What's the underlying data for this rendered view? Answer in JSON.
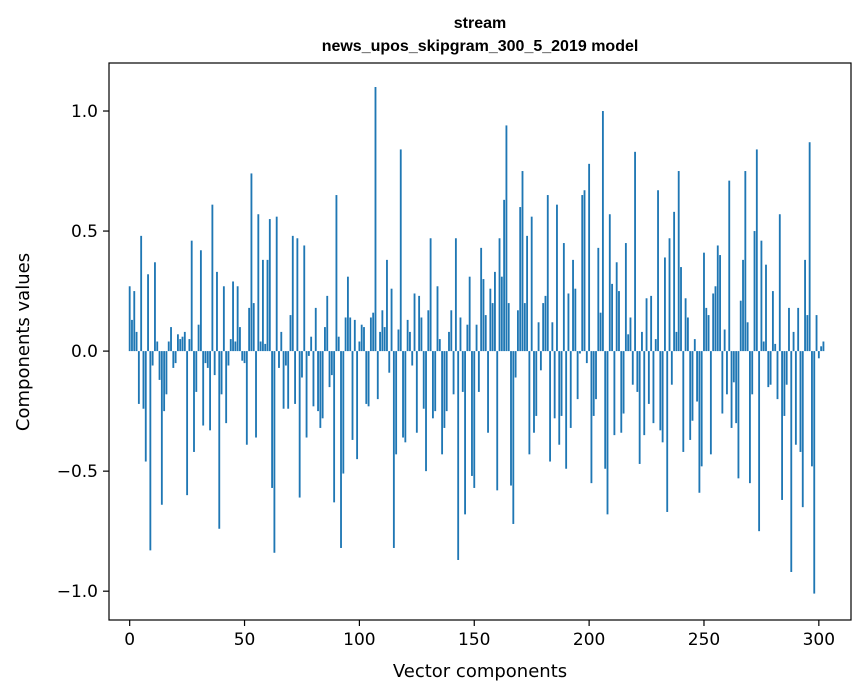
{
  "chart_data": {
    "type": "bar",
    "title": "stream",
    "subtitle": "news_upos_skipgram_300_5_2019 model",
    "xlabel": "Vector components",
    "ylabel": "Components values",
    "xlim": [
      -9,
      314
    ],
    "ylim": [
      -1.12,
      1.2
    ],
    "x_ticks": [
      0,
      50,
      100,
      150,
      200,
      250,
      300
    ],
    "x_tick_labels": [
      "0",
      "50",
      "100",
      "150",
      "200",
      "250",
      "300"
    ],
    "y_ticks": [
      -1.0,
      -0.5,
      0.0,
      0.5,
      1.0
    ],
    "y_tick_labels": [
      "−1.0",
      "−0.5",
      "0.0",
      "0.5",
      "1.0"
    ],
    "grid": false,
    "bar_color": "#1f77b4",
    "values": [
      0.27,
      0.13,
      0.25,
      0.08,
      -0.22,
      0.48,
      -0.24,
      -0.46,
      0.32,
      -0.83,
      -0.06,
      0.37,
      0.04,
      -0.12,
      -0.64,
      -0.25,
      -0.18,
      0.04,
      0.1,
      -0.07,
      -0.05,
      0.07,
      0.05,
      0.06,
      0.08,
      -0.6,
      0.05,
      0.46,
      -0.42,
      -0.17,
      0.11,
      0.42,
      -0.31,
      -0.05,
      -0.07,
      -0.33,
      0.61,
      -0.1,
      0.33,
      -0.74,
      -0.18,
      0.27,
      -0.3,
      -0.06,
      0.05,
      0.29,
      0.04,
      0.27,
      0.1,
      -0.04,
      -0.05,
      -0.39,
      0.18,
      0.74,
      0.2,
      -0.36,
      0.57,
      0.04,
      0.38,
      0.03,
      0.38,
      0.55,
      -0.57,
      -0.84,
      0.56,
      -0.07,
      0.08,
      -0.24,
      -0.06,
      -0.24,
      0.15,
      0.48,
      -0.22,
      0.47,
      -0.61,
      -0.11,
      0.44,
      -0.36,
      -0.02,
      0.06,
      -0.23,
      0.18,
      -0.25,
      -0.32,
      -0.28,
      0.1,
      0.23,
      -0.15,
      -0.1,
      -0.63,
      0.65,
      0.06,
      -0.82,
      -0.51,
      0.14,
      0.31,
      0.14,
      -0.37,
      0.13,
      -0.45,
      0.04,
      0.11,
      0.1,
      -0.22,
      -0.23,
      0.14,
      0.16,
      1.1,
      -0.2,
      0.08,
      0.17,
      0.1,
      0.38,
      -0.09,
      0.26,
      -0.82,
      -0.43,
      0.09,
      0.84,
      -0.36,
      -0.38,
      0.13,
      0.08,
      -0.06,
      0.24,
      -0.34,
      0.23,
      0.14,
      -0.24,
      -0.5,
      0.17,
      0.47,
      -0.28,
      -0.25,
      0.27,
      0.05,
      -0.43,
      -0.32,
      -0.25,
      0.08,
      0.17,
      -0.18,
      0.47,
      -0.87,
      0.14,
      -0.17,
      -0.68,
      0.11,
      0.31,
      -0.52,
      -0.57,
      0.11,
      -0.17,
      0.43,
      0.3,
      0.15,
      -0.34,
      0.26,
      0.2,
      0.33,
      -0.58,
      0.47,
      0.31,
      0.63,
      0.94,
      0.2,
      -0.56,
      -0.72,
      -0.11,
      0.17,
      0.6,
      0.75,
      0.2,
      0.48,
      -0.43,
      0.56,
      -0.34,
      -0.27,
      0.12,
      -0.08,
      0.2,
      0.23,
      0.65,
      -0.46,
      0.12,
      -0.28,
      0.61,
      -0.39,
      -0.27,
      0.45,
      -0.49,
      0.24,
      -0.32,
      0.38,
      0.26,
      -0.2,
      -0.01,
      0.65,
      0.67,
      -0.05,
      0.78,
      -0.55,
      -0.27,
      -0.2,
      0.43,
      0.16,
      1.0,
      -0.49,
      -0.68,
      0.57,
      0.28,
      -0.35,
      0.37,
      0.25,
      -0.34,
      -0.26,
      0.45,
      0.07,
      0.14,
      -0.14,
      0.83,
      -0.17,
      -0.47,
      0.08,
      -0.35,
      0.22,
      -0.22,
      0.23,
      -0.3,
      0.05,
      0.67,
      -0.33,
      -0.38,
      0.39,
      -0.67,
      0.47,
      -0.14,
      0.58,
      0.08,
      0.75,
      0.35,
      -0.42,
      0.22,
      0.14,
      -0.37,
      -0.29,
      0.05,
      -0.21,
      -0.59,
      -0.48,
      0.41,
      0.18,
      0.15,
      -0.43,
      0.24,
      0.27,
      0.44,
      0.4,
      -0.26,
      0.09,
      -0.18,
      0.71,
      -0.32,
      -0.13,
      -0.3,
      -0.53,
      0.21,
      0.38,
      0.75,
      0.12,
      -0.55,
      -0.18,
      0.5,
      0.84,
      -0.75,
      0.46,
      0.04,
      0.36,
      -0.15,
      -0.14,
      0.25,
      0.03,
      -0.2,
      0.57,
      -0.62,
      -0.27,
      -0.14,
      0.18,
      -0.92,
      0.08,
      -0.39,
      0.18,
      -0.42,
      -0.65,
      0.38,
      0.15,
      0.87,
      -0.48,
      -1.01,
      0.15,
      -0.03,
      0.02,
      0.04
    ]
  }
}
